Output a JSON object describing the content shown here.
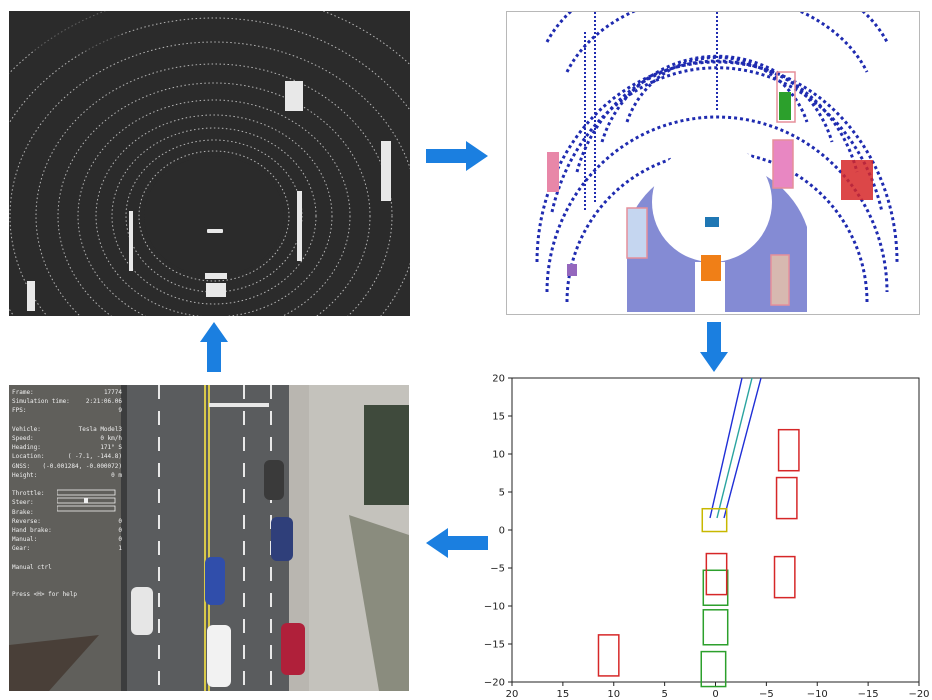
{
  "pipeline": {
    "flow": [
      "lidar-raw",
      "lidar-segmentation",
      "bev-plot",
      "simulator-view"
    ]
  },
  "simulator_hud": {
    "rows": [
      {
        "key": "Frame:",
        "value": "17774"
      },
      {
        "key": "Simulation time:",
        "value": "2:21:06.06"
      },
      {
        "key": "FPS:",
        "value": "9"
      },
      {
        "key": "",
        "value": ""
      },
      {
        "key": "Vehicle:",
        "value": "Tesla Model3"
      },
      {
        "key": "Speed:",
        "value": "0 km/h"
      },
      {
        "key": "Heading:",
        "value": "171° S"
      },
      {
        "key": "Location:",
        "value": "( -7.1, -144.8)"
      },
      {
        "key": "GNSS:",
        "value": "(-0.001284, -0.000072)"
      },
      {
        "key": "Height:",
        "value": "0 m"
      },
      {
        "key": "",
        "value": ""
      },
      {
        "key": "Throttle:",
        "value": ""
      },
      {
        "key": "Steer:",
        "value": ""
      },
      {
        "key": "Brake:",
        "value": ""
      },
      {
        "key": "Reverse:",
        "value": "0"
      },
      {
        "key": "Hand brake:",
        "value": "0"
      },
      {
        "key": "Manual:",
        "value": "0"
      },
      {
        "key": "Gear:",
        "value": "1"
      },
      {
        "key": "",
        "value": ""
      },
      {
        "key": "Manual ctrl",
        "value": ""
      }
    ],
    "help": "Press <H> for help"
  },
  "bev_axes": {
    "x_ticks": [
      "20",
      "15",
      "10",
      "5",
      "0",
      "−5",
      "−10",
      "−15",
      "−20"
    ],
    "y_ticks": [
      "20",
      "15",
      "10",
      "5",
      "0",
      "−5",
      "−10",
      "−15",
      "−20"
    ],
    "xlim": [
      20,
      -20
    ],
    "ylim": [
      -20,
      20
    ]
  },
  "bev_objects": {
    "red_boxes": [
      [
        -7.2,
        10.5
      ],
      [
        -7.0,
        4.2
      ],
      [
        -6.8,
        -6.2
      ],
      [
        -0.1,
        -5.8
      ],
      [
        10.5,
        -16.5
      ]
    ],
    "green_boxes": [
      [
        0.0,
        -7.6
      ],
      [
        0.0,
        -12.8
      ],
      [
        0.2,
        -18.3
      ]
    ],
    "yellow_box": [
      0.1,
      1.3
    ]
  },
  "colors": {
    "arrow": "#1b7fe0",
    "lane_blue": "#1f2fd6",
    "lane_cyan": "#2aa4a0",
    "box_red": "#d62728",
    "box_green": "#2ca02c",
    "box_yellow": "#c8b800",
    "lidar_blue": "#1f2bb0"
  }
}
